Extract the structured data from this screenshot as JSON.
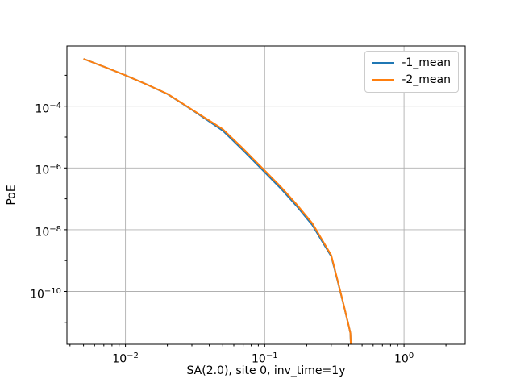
{
  "figure": {
    "background": "#ffffff",
    "text_color": "#000000",
    "spine_color": "#000000"
  },
  "chart_data": {
    "type": "line",
    "title": "",
    "xlabel": "SA(2.0), site 0, inv_time=1y",
    "ylabel": "PoE",
    "xscale": "log",
    "yscale": "log",
    "xlim": [
      0.0038,
      2.75
    ],
    "ylim": [
      1.95e-12,
      0.0089
    ],
    "grid": true,
    "grid_color": "#b0b0b0",
    "legend_position": "upper right",
    "x_major_tick_exponents": [
      -2,
      -1,
      0
    ],
    "y_major_tick_exponents": [
      -4,
      -6,
      -8,
      -10
    ],
    "x": [
      0.005,
      0.007,
      0.01,
      0.014,
      0.02,
      0.03,
      0.05,
      0.07,
      0.1,
      0.13,
      0.17,
      0.22,
      0.26,
      0.3,
      0.33,
      0.37,
      0.4,
      0.412,
      0.415
    ],
    "series": [
      {
        "name": "-1_mean",
        "color": "#1f77b4",
        "y": [
          0.0034,
          0.0019,
          0.001,
          0.00052,
          0.000248,
          7.6e-05,
          1.62e-05,
          3.7e-06,
          7.3e-07,
          2.2e-07,
          5.7e-08,
          1.4e-08,
          4e-09,
          1.38e-09,
          2.65e-10,
          3.4e-11,
          7.9e-12,
          4.5e-12,
          1.9e-12
        ]
      },
      {
        "name": "-2_mean",
        "color": "#ff7f0e",
        "y": [
          0.0034,
          0.0019,
          0.001,
          0.00052,
          0.00025,
          7.8e-05,
          1.8e-05,
          4.2e-06,
          8.3e-07,
          2.5e-07,
          6.5e-08,
          1.6e-08,
          4.5e-09,
          1.5e-09,
          2.8e-10,
          3.5e-11,
          8e-12,
          4.5e-12,
          1.9e-12
        ]
      }
    ]
  },
  "legend": {
    "entries": [
      {
        "label": "-1_mean",
        "color": "#1f77b4"
      },
      {
        "label": "-2_mean",
        "color": "#ff7f0e"
      }
    ]
  }
}
